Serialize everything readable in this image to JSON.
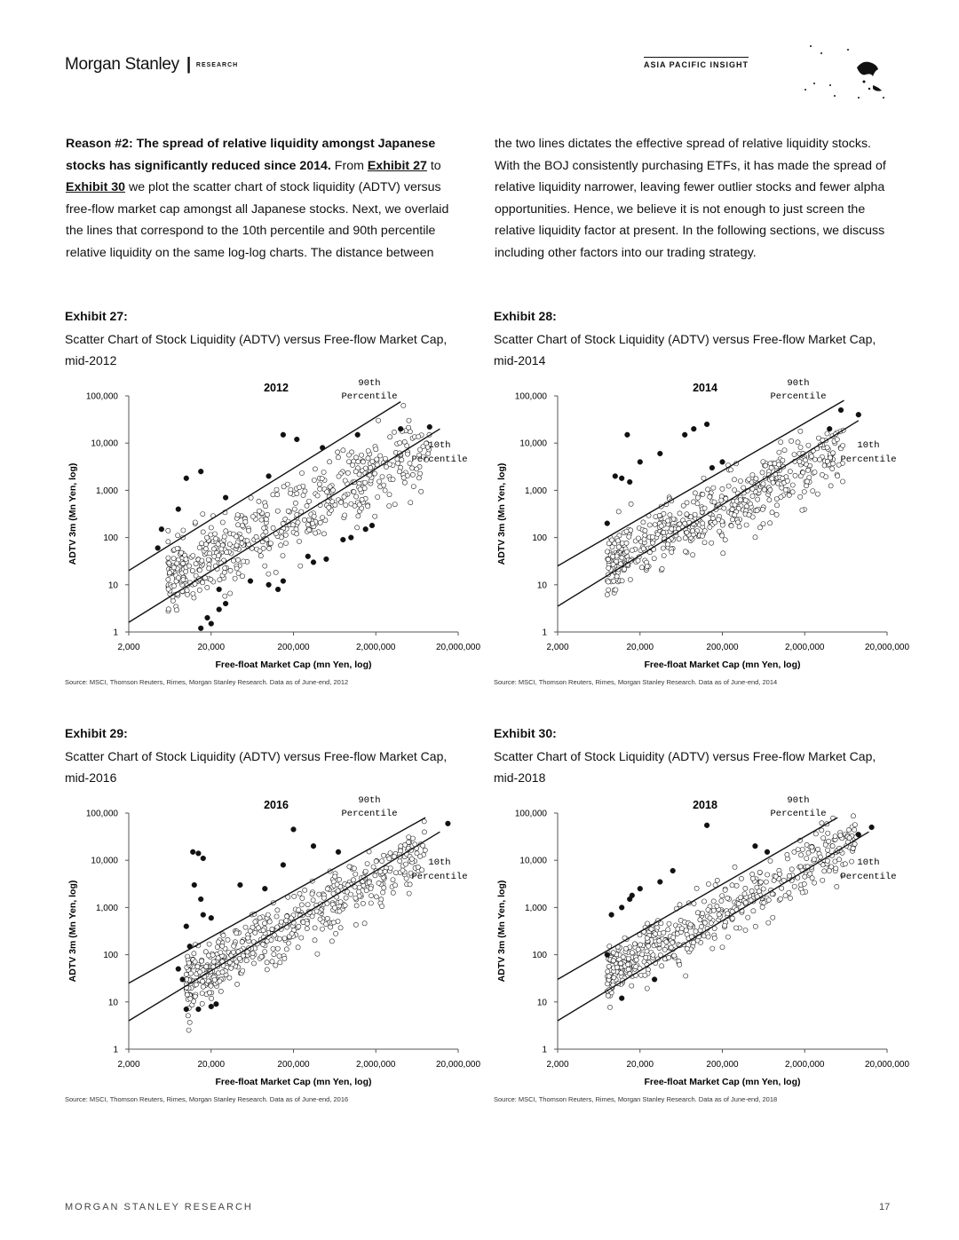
{
  "header": {
    "brand": "Morgan Stanley",
    "separator": "|",
    "section": "RESEARCH",
    "insight": "ASIA PACIFIC INSIGHT"
  },
  "intro": {
    "lead": "Reason #2: The spread of relative liquidity amongst Japanese stocks has significantly reduced since 2014.",
    "text1": " From ",
    "link1": "Exhibit 27",
    "text2": " to ",
    "link2": "Exhibit 30",
    "text3": " we plot the scatter chart of stock liquidity (ADTV) versus free-flow market cap amongst all Japanese stocks. Next, we overlaid the lines that correspond to the 10th percentile and 90th percentile relative liquidity on the same log-log charts. The distance between",
    "right": "the two lines dictates the effective spread of relative liquidity stocks. With the BOJ consistently purchasing ETFs, it has made the spread of relative liquidity narrower, leaving fewer outlier stocks and fewer alpha opportunities. Hence, we believe it is not enough to just screen the relative liquidity factor at present. In the following sections, we discuss including other factors into our trading strategy."
  },
  "chart_data": [
    {
      "type": "scatter",
      "label": "Exhibit 27:",
      "title": "Scatter Chart of Stock Liquidity (ADTV) versus Free-flow Market Cap, mid-2012",
      "year_label": "2012",
      "xlabel": "Free-float Market Cap (mn Yen, log)",
      "ylabel": "ADTV 3m (Mn Yen, log)",
      "x_ticks": [
        "2,000",
        "20,000",
        "200,000",
        "2,000,000",
        "20,000,000"
      ],
      "y_ticks": [
        "100,000",
        "10,000",
        "1,000",
        "100",
        "10",
        "1"
      ],
      "xlim": [
        2000,
        20000000
      ],
      "ylim": [
        1,
        100000
      ],
      "xscale": "log",
      "yscale": "log",
      "lines": [
        {
          "name": "90th Percentile",
          "x": [
            2000,
            4000000
          ],
          "y": [
            20,
            75000
          ]
        },
        {
          "name": "10th Percentile",
          "x": [
            2000,
            12000000
          ],
          "y": [
            1.6,
            20000
          ]
        }
      ],
      "cloud": {
        "xmin": 6000,
        "xmax": 9000000,
        "y_at_x": [
          [
            6000,
            12
          ],
          [
            9000000,
            9000
          ]
        ],
        "spread": 1.4
      },
      "outliers": [
        [
          15000,
          2500
        ],
        [
          10000,
          1800
        ],
        [
          8000,
          400
        ],
        [
          5000,
          150
        ],
        [
          4500,
          60
        ],
        [
          30000,
          700
        ],
        [
          100000,
          2000
        ],
        [
          150000,
          15000
        ],
        [
          220000,
          12000
        ],
        [
          450000,
          8000
        ],
        [
          1200000,
          15000
        ],
        [
          1500000,
          150
        ],
        [
          1800000,
          180
        ],
        [
          1000000,
          100
        ],
        [
          800000,
          90
        ],
        [
          300000,
          40
        ],
        [
          350000,
          30
        ],
        [
          500000,
          35
        ],
        [
          100000,
          10
        ],
        [
          130000,
          8
        ],
        [
          150000,
          12
        ],
        [
          60000,
          12
        ],
        [
          25000,
          3
        ],
        [
          30000,
          4
        ],
        [
          20000,
          1.5
        ],
        [
          18000,
          2
        ],
        [
          25000,
          8
        ],
        [
          15000,
          1.2
        ],
        [
          9000000,
          22000
        ],
        [
          4000000,
          20000
        ]
      ],
      "source": "Source: MSCI, Thomson Reuters, Rimes, Morgan Stanley Research. Data as of June-end, 2012"
    },
    {
      "type": "scatter",
      "label": "Exhibit 28:",
      "title": "Scatter Chart of Stock Liquidity (ADTV) versus Free-flow Market Cap, mid-2014",
      "year_label": "2014",
      "xlabel": "Free-float Market Cap (mn Yen, log)",
      "ylabel": "ADTV 3m (Mn Yen, log)",
      "x_ticks": [
        "2,000",
        "20,000",
        "200,000",
        "2,000,000",
        "20,000,000"
      ],
      "y_ticks": [
        "100,000",
        "10,000",
        "1,000",
        "100",
        "10",
        "1"
      ],
      "xlim": [
        2000,
        20000000
      ],
      "ylim": [
        1,
        100000
      ],
      "xscale": "log",
      "yscale": "log",
      "lines": [
        {
          "name": "90th Percentile",
          "x": [
            2000,
            6000000
          ],
          "y": [
            25,
            80000
          ]
        },
        {
          "name": "10th Percentile",
          "x": [
            2000,
            9000000
          ],
          "y": [
            3.5,
            30000
          ]
        }
      ],
      "cloud": {
        "xmin": 8000,
        "xmax": 6000000,
        "y_at_x": [
          [
            8000,
            25
          ],
          [
            6000000,
            8000
          ]
        ],
        "spread": 1.2
      },
      "outliers": [
        [
          10000,
          2000
        ],
        [
          12000,
          1800
        ],
        [
          15000,
          1500
        ],
        [
          14000,
          15000
        ],
        [
          20000,
          4000
        ],
        [
          35000,
          6000
        ],
        [
          70000,
          15000
        ],
        [
          90000,
          20000
        ],
        [
          130000,
          25000
        ],
        [
          150000,
          3000
        ],
        [
          200000,
          4000
        ],
        [
          8000,
          200
        ],
        [
          9000000,
          40000
        ],
        [
          5500000,
          50000
        ],
        [
          4000000,
          20000
        ]
      ],
      "source": "Source: MSCI, Thomson Reuters, Rimes, Morgan Stanley Research. Data as of June-end, 2014"
    },
    {
      "type": "scatter",
      "label": "Exhibit 29:",
      "title": "Scatter Chart of Stock Liquidity (ADTV) versus Free-flow Market Cap, mid-2016",
      "year_label": "2016",
      "xlabel": "Free-float Market Cap (mn Yen, log)",
      "ylabel": "ADTV 3m (Mn Yen, log)",
      "x_ticks": [
        "2,000",
        "20,000",
        "200,000",
        "2,000,000",
        "20,000,000"
      ],
      "y_ticks": [
        "100,000",
        "10,000",
        "1,000",
        "100",
        "10",
        "1"
      ],
      "xlim": [
        2000,
        20000000
      ],
      "ylim": [
        1,
        100000
      ],
      "xscale": "log",
      "yscale": "log",
      "lines": [
        {
          "name": "90th Percentile",
          "x": [
            2000,
            8000000
          ],
          "y": [
            25,
            80000
          ]
        },
        {
          "name": "10th Percentile",
          "x": [
            2000,
            12000000
          ],
          "y": [
            4,
            40000
          ]
        }
      ],
      "cloud": {
        "xmin": 10000,
        "xmax": 8000000,
        "y_at_x": [
          [
            10000,
            25
          ],
          [
            8000000,
            15000
          ]
        ],
        "spread": 1.1
      },
      "outliers": [
        [
          12000,
          15000
        ],
        [
          14000,
          14000
        ],
        [
          16000,
          11000
        ],
        [
          12500,
          3000
        ],
        [
          15000,
          1500
        ],
        [
          16000,
          700
        ],
        [
          20000,
          600
        ],
        [
          10000,
          400
        ],
        [
          11000,
          150
        ],
        [
          8000,
          50
        ],
        [
          9000,
          30
        ],
        [
          10000,
          7
        ],
        [
          14000,
          7
        ],
        [
          20000,
          8
        ],
        [
          23000,
          9
        ],
        [
          45000,
          3000
        ],
        [
          90000,
          2500
        ],
        [
          150000,
          8000
        ],
        [
          200000,
          45000
        ],
        [
          350000,
          20000
        ],
        [
          700000,
          15000
        ],
        [
          15000000,
          60000
        ]
      ],
      "source": "Source: MSCI, Thomson Reuters, Rimes, Morgan Stanley Research. Data as of June-end, 2016"
    },
    {
      "type": "scatter",
      "label": "Exhibit 30:",
      "title": "Scatter Chart of Stock Liquidity (ADTV) versus Free-flow Market Cap, mid-2018",
      "year_label": "2018",
      "xlabel": "Free-float Market Cap (mn Yen, log)",
      "ylabel": "ADTV 3m (Mn Yen, log)",
      "x_ticks": [
        "2,000",
        "20,000",
        "200,000",
        "2,000,000",
        "20,000,000"
      ],
      "y_ticks": [
        "100,000",
        "10,000",
        "1,000",
        "100",
        "10",
        "1"
      ],
      "xlim": [
        2000,
        20000000
      ],
      "ylim": [
        1,
        100000
      ],
      "xscale": "log",
      "yscale": "log",
      "lines": [
        {
          "name": "90th Percentile",
          "x": [
            2000,
            5000000
          ],
          "y": [
            30,
            80000
          ]
        },
        {
          "name": "10th Percentile",
          "x": [
            2000,
            12000000
          ],
          "y": [
            4,
            40000
          ]
        }
      ],
      "cloud": {
        "xmin": 8000,
        "xmax": 9000000,
        "y_at_x": [
          [
            8000,
            40
          ],
          [
            9000000,
            25000
          ]
        ],
        "spread": 1.1
      },
      "outliers": [
        [
          9000,
          700
        ],
        [
          12000,
          1000
        ],
        [
          15000,
          1500
        ],
        [
          16000,
          1800
        ],
        [
          20000,
          2500
        ],
        [
          35000,
          3500
        ],
        [
          50000,
          6000
        ],
        [
          130000,
          55000
        ],
        [
          500000,
          20000
        ],
        [
          700000,
          15000
        ],
        [
          30000,
          30
        ],
        [
          12000,
          12
        ],
        [
          8000,
          100
        ],
        [
          13000000,
          50000
        ],
        [
          9000000,
          35000
        ]
      ],
      "source": "Source: MSCI, Thomson Reuters, Rimes, Morgan Stanley Research. Data as of June-end, 2018"
    }
  ],
  "footer": {
    "text": "MORGAN STANLEY RESEARCH",
    "page": "17"
  }
}
